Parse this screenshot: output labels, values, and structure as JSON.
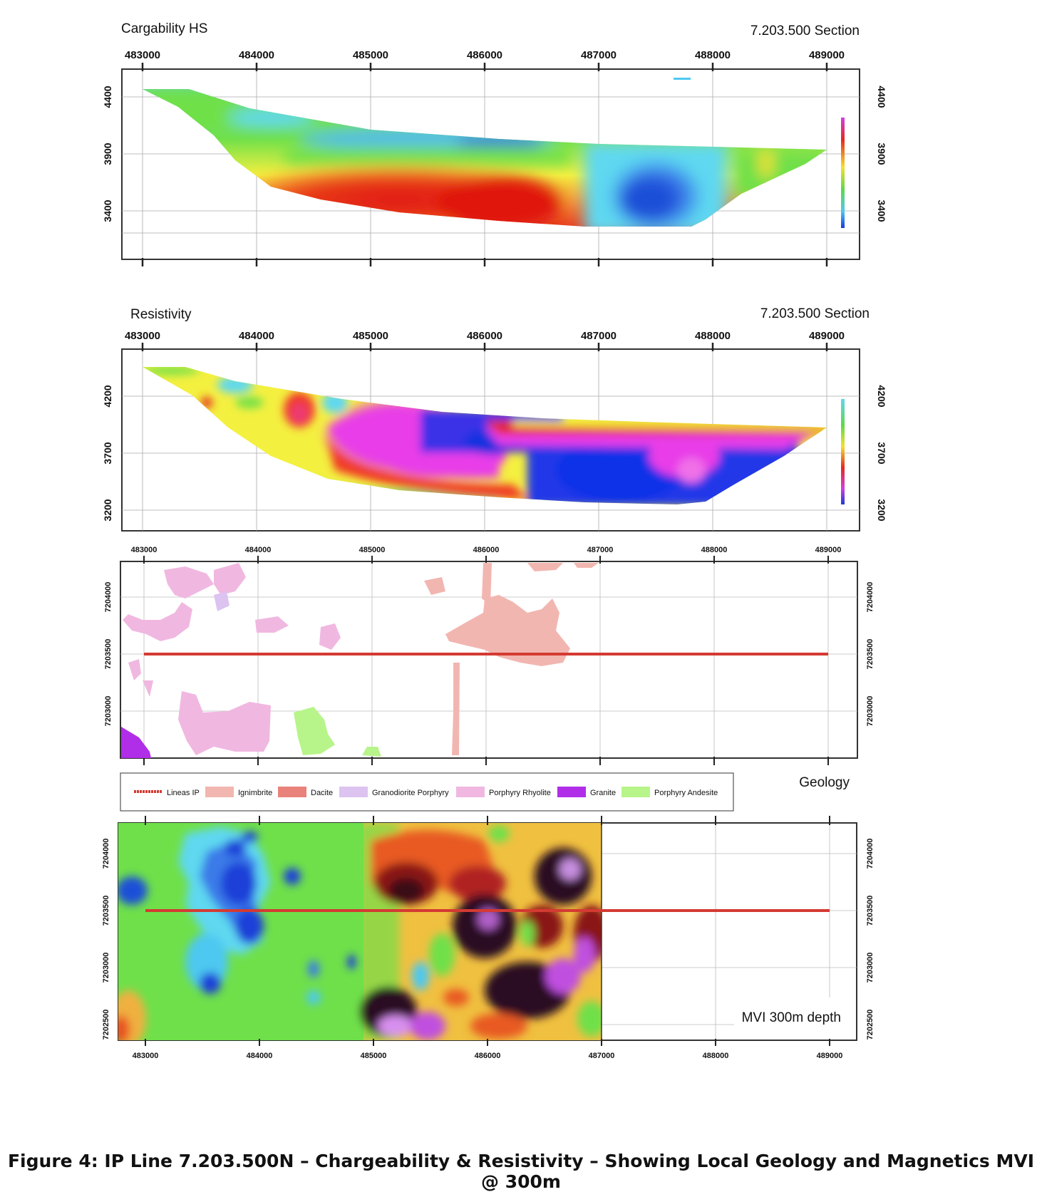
{
  "panels": {
    "chargeability": {
      "title": "Cargability HS",
      "section": "7.203.500 Section",
      "x_ticks": [
        "483000",
        "484000",
        "485000",
        "486000",
        "487000",
        "488000",
        "489000"
      ],
      "y_ticks": [
        "4400",
        "3900",
        "3400"
      ]
    },
    "resistivity": {
      "title": "Resistivity",
      "section": "7.203.500 Section",
      "x_ticks": [
        "483000",
        "484000",
        "485000",
        "486000",
        "487000",
        "488000",
        "489000"
      ],
      "y_ticks": [
        "4200",
        "3700",
        "3200"
      ]
    },
    "geology": {
      "title": "Geology",
      "x_ticks": [
        "483000",
        "484000",
        "485000",
        "486000",
        "487000",
        "488000",
        "489000"
      ],
      "y_ticks": [
        "7204000",
        "7203500",
        "7203000"
      ],
      "line_northing": 7203500
    },
    "mvi": {
      "title": "MVI 300m depth",
      "y_ticks": [
        "7204000",
        "7203500",
        "7203000",
        "7202500"
      ],
      "x_ticks": [
        "483000",
        "484000",
        "485000",
        "486000",
        "487000",
        "488000",
        "489000"
      ],
      "line_northing": 7203500
    }
  },
  "legend": [
    {
      "label": "Lineas IP",
      "color": "#d43a32",
      "kind": "line"
    },
    {
      "label": "Ignimbrite",
      "color": "#f2b6b0",
      "kind": "box"
    },
    {
      "label": "Dacite",
      "color": "#e8827a",
      "kind": "box"
    },
    {
      "label": "Granodiorite Porphyry",
      "color": "#dcc3f0",
      "kind": "box"
    },
    {
      "label": "Porphyry Rhyolite",
      "color": "#f0b8e0",
      "kind": "box"
    },
    {
      "label": "Granite",
      "color": "#b02ee8",
      "kind": "box"
    },
    {
      "label": "Porphyry Andesite",
      "color": "#b7f48a",
      "kind": "box"
    }
  ],
  "caption": "Figure 4: IP Line 7.203.500N – Chargeability & Resistivity – Showing Local Geology and Magnetics MVI @ 300m"
}
